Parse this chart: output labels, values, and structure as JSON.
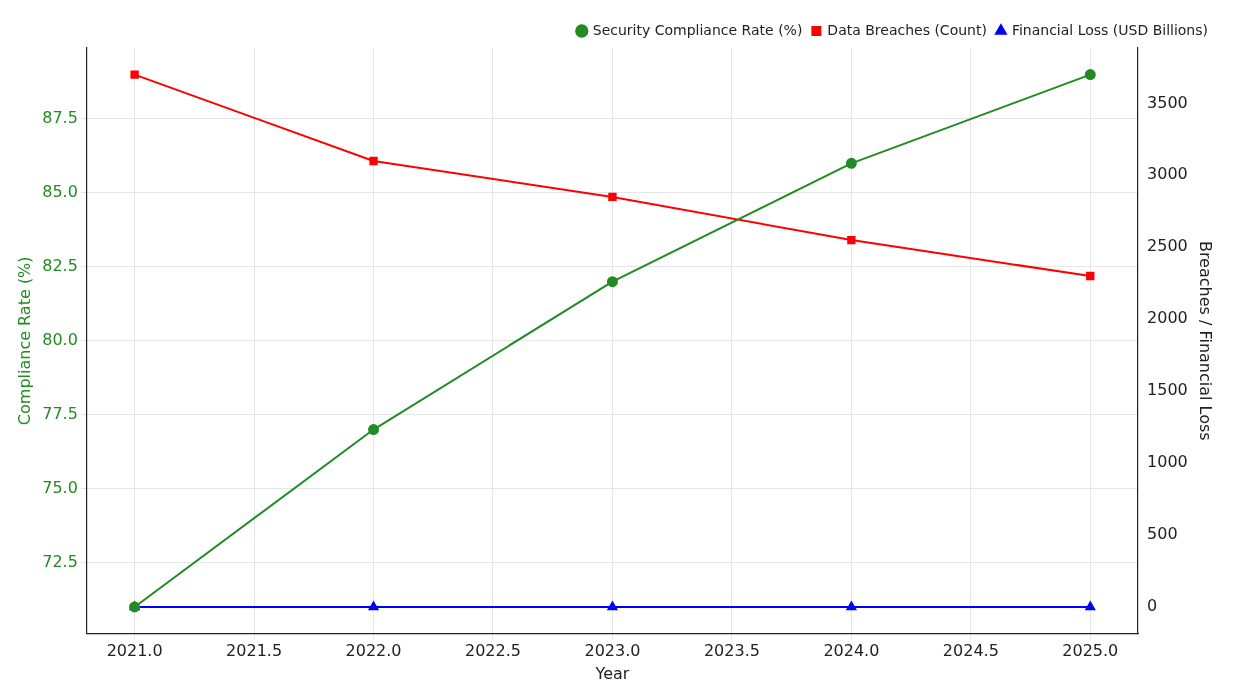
{
  "chart_data": {
    "type": "line",
    "xlabel": "Year",
    "ylabel": "Compliance Rate (%)",
    "y2label": "Breaches / Financial Loss",
    "x": [
      2021,
      2022,
      2023,
      2024,
      2025
    ],
    "series": [
      {
        "name": "Security Compliance Rate (%)",
        "color": "#228b22",
        "values": [
          71,
          77,
          82,
          86,
          89
        ],
        "marker": "circle"
      },
      {
        "name": "Data Breaches (Count)",
        "color": "#ff0000",
        "values": [
          3700,
          3100,
          2850,
          2550,
          2300
        ],
        "marker": "square",
        "axis": "y2"
      },
      {
        "name": "Financial Loss (USD Billions)",
        "color": "#0000ff",
        "values": [
          0,
          0,
          0,
          0,
          0
        ],
        "marker": "triangle",
        "axis": "y2"
      }
    ],
    "xlim": [
      2020.8,
      2025.2
    ],
    "xticks": [
      {
        "value": 2021,
        "label": "2021.0"
      },
      {
        "value": 2021.5,
        "label": "2021.5"
      },
      {
        "value": 2022,
        "label": "2022.0"
      },
      {
        "value": 2022.5,
        "label": "2022.5"
      },
      {
        "value": 2023,
        "label": "2023.0"
      },
      {
        "value": 2023.5,
        "label": "2023.5"
      },
      {
        "value": 2024,
        "label": "2024.0"
      },
      {
        "value": 2024.5,
        "label": "2024.5"
      },
      {
        "value": 2025,
        "label": "2025.0"
      }
    ],
    "ylim": [
      70.1,
      89.9
    ],
    "yticks": [
      72.5,
      {
        "value": 75,
        "label": "75.0"
      },
      77.5,
      {
        "value": 80,
        "label": "80.0"
      },
      82.5,
      {
        "value": 85,
        "label": "85.0"
      },
      87.5
    ],
    "y2lim": [
      -185,
      3885
    ],
    "y2ticks": [
      0,
      500,
      1000,
      1500,
      2000,
      2500,
      3000,
      3500
    ],
    "grid": true,
    "legend": "top right",
    "line_style": "solid"
  }
}
